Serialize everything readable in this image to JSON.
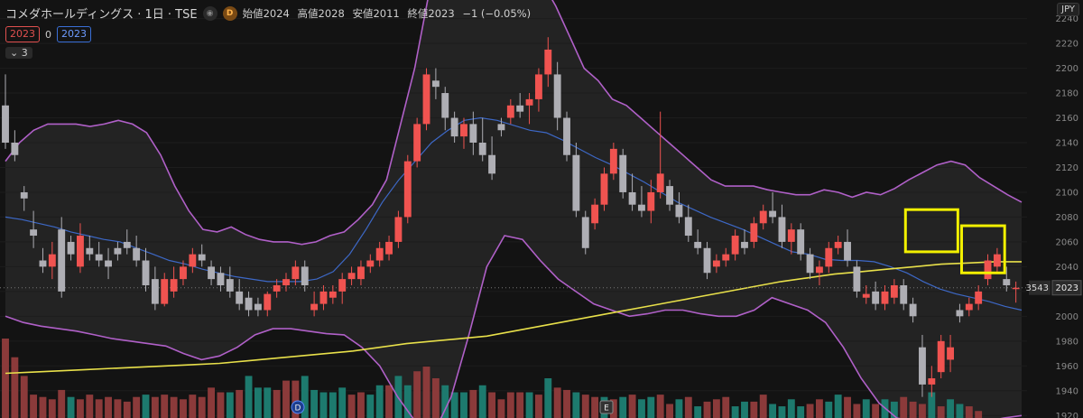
{
  "header": {
    "symbol": "コメダホールディングス · 1日 · TSE",
    "d_badge": "D",
    "open_label": "始値",
    "open": "2024",
    "high_label": "高値",
    "high": "2028",
    "low_label": "安値",
    "low": "2011",
    "close_label": "終値",
    "close": "2023",
    "change": "−1 (−0.05%)",
    "price_red": "2023",
    "spread": "0",
    "price_blue": "2023",
    "indicator_toggle": "3",
    "currency": "JPY"
  },
  "colors": {
    "background": "#131313",
    "up": "#f05350",
    "down": "#aeaeb4",
    "bb_upper_lower": "#b060c8",
    "bb_basis": "#3d68c6",
    "ma_long": "#e8e04a",
    "highlight_box": "#f2f000",
    "vol_up": "#8b3a3a",
    "vol_down": "#1d7a6e"
  },
  "chart_data": {
    "type": "candlestick",
    "ylim": [
      1918,
      2255
    ],
    "yticks": [
      1920,
      1940,
      1960,
      1980,
      2000,
      2020,
      2040,
      2060,
      2080,
      2100,
      2120,
      2140,
      2160,
      2180,
      2200,
      2220,
      2240
    ],
    "y_axis_labels": [
      "1920",
      "1940",
      "1960",
      "1980",
      "2000",
      "2020",
      "2040",
      "2060",
      "2080",
      "2100",
      "2120",
      "2140",
      "2160",
      "2180",
      "2200",
      "2220",
      "2240"
    ],
    "last_price_label": "2023",
    "secondary_label": "3543",
    "last_price": 2023,
    "candles": [
      [
        2170,
        2195,
        2135,
        2140
      ],
      [
        2140,
        2150,
        2125,
        2130
      ],
      [
        2100,
        2105,
        2085,
        2095
      ],
      [
        2070,
        2085,
        2055,
        2065
      ],
      [
        2045,
        2055,
        2035,
        2040
      ],
      [
        2040,
        2060,
        2030,
        2050
      ],
      [
        2070,
        2080,
        2015,
        2020
      ],
      [
        2060,
        2065,
        2045,
        2050
      ],
      [
        2040,
        2075,
        2035,
        2065
      ],
      [
        2055,
        2065,
        2045,
        2050
      ],
      [
        2050,
        2060,
        2040,
        2045
      ],
      [
        2045,
        2055,
        2030,
        2040
      ],
      [
        2055,
        2060,
        2045,
        2050
      ],
      [
        2060,
        2070,
        2050,
        2055
      ],
      [
        2055,
        2065,
        2040,
        2045
      ],
      [
        2045,
        2055,
        2020,
        2025
      ],
      [
        2030,
        2040,
        2005,
        2010
      ],
      [
        2010,
        2035,
        2008,
        2030
      ],
      [
        2020,
        2040,
        2015,
        2030
      ],
      [
        2030,
        2045,
        2025,
        2040
      ],
      [
        2040,
        2055,
        2035,
        2050
      ],
      [
        2050,
        2058,
        2040,
        2045
      ],
      [
        2040,
        2045,
        2025,
        2030
      ],
      [
        2035,
        2040,
        2020,
        2025
      ],
      [
        2030,
        2040,
        2015,
        2020
      ],
      [
        2020,
        2030,
        2005,
        2010
      ],
      [
        2015,
        2020,
        2000,
        2005
      ],
      [
        2010,
        2015,
        2000,
        2005
      ],
      [
        2005,
        2020,
        2000,
        2018
      ],
      [
        2020,
        2030,
        2015,
        2025
      ],
      [
        2025,
        2035,
        2020,
        2030
      ],
      [
        2030,
        2045,
        2025,
        2040
      ],
      [
        2040,
        2045,
        2020,
        2025
      ],
      [
        2005,
        2020,
        2000,
        2010
      ],
      [
        2010,
        2025,
        2005,
        2020
      ],
      [
        2015,
        2025,
        2010,
        2020
      ],
      [
        2020,
        2035,
        2010,
        2030
      ],
      [
        2030,
        2040,
        2025,
        2035
      ],
      [
        2030,
        2045,
        2025,
        2040
      ],
      [
        2040,
        2050,
        2035,
        2045
      ],
      [
        2045,
        2060,
        2040,
        2055
      ],
      [
        2050,
        2065,
        2045,
        2060
      ],
      [
        2060,
        2085,
        2055,
        2080
      ],
      [
        2080,
        2130,
        2075,
        2125
      ],
      [
        2125,
        2160,
        2120,
        2155
      ],
      [
        2155,
        2200,
        2150,
        2195
      ],
      [
        2190,
        2200,
        2175,
        2185
      ],
      [
        2180,
        2185,
        2150,
        2160
      ],
      [
        2160,
        2165,
        2140,
        2145
      ],
      [
        2145,
        2160,
        2135,
        2155
      ],
      [
        2155,
        2165,
        2130,
        2140
      ],
      [
        2140,
        2160,
        2125,
        2130
      ],
      [
        2130,
        2145,
        2110,
        2115
      ],
      [
        2155,
        2160,
        2145,
        2150
      ],
      [
        2160,
        2175,
        2155,
        2170
      ],
      [
        2170,
        2180,
        2160,
        2165
      ],
      [
        2170,
        2180,
        2155,
        2175
      ],
      [
        2175,
        2200,
        2165,
        2195
      ],
      [
        2195,
        2225,
        2185,
        2215
      ],
      [
        2195,
        2205,
        2150,
        2160
      ],
      [
        2160,
        2165,
        2125,
        2130
      ],
      [
        2130,
        2140,
        2080,
        2085
      ],
      [
        2080,
        2085,
        2050,
        2055
      ],
      [
        2075,
        2095,
        2070,
        2090
      ],
      [
        2090,
        2120,
        2085,
        2115
      ],
      [
        2115,
        2140,
        2110,
        2135
      ],
      [
        2130,
        2135,
        2095,
        2100
      ],
      [
        2100,
        2115,
        2085,
        2090
      ],
      [
        2090,
        2105,
        2080,
        2085
      ],
      [
        2085,
        2110,
        2075,
        2100
      ],
      [
        2100,
        2165,
        2095,
        2115
      ],
      [
        2105,
        2110,
        2085,
        2090
      ],
      [
        2090,
        2100,
        2075,
        2080
      ],
      [
        2080,
        2090,
        2060,
        2065
      ],
      [
        2060,
        2070,
        2050,
        2055
      ],
      [
        2055,
        2060,
        2030,
        2035
      ],
      [
        2040,
        2050,
        2035,
        2045
      ],
      [
        2045,
        2055,
        2040,
        2050
      ],
      [
        2050,
        2070,
        2045,
        2065
      ],
      [
        2060,
        2070,
        2050,
        2055
      ],
      [
        2060,
        2080,
        2055,
        2075
      ],
      [
        2075,
        2090,
        2070,
        2085
      ],
      [
        2085,
        2100,
        2075,
        2080
      ],
      [
        2080,
        2090,
        2055,
        2060
      ],
      [
        2060,
        2075,
        2050,
        2070
      ],
      [
        2070,
        2075,
        2045,
        2050
      ],
      [
        2050,
        2055,
        2030,
        2035
      ],
      [
        2035,
        2045,
        2025,
        2040
      ],
      [
        2040,
        2060,
        2035,
        2055
      ],
      [
        2055,
        2065,
        2050,
        2060
      ],
      [
        2060,
        2070,
        2040,
        2045
      ],
      [
        2040,
        2045,
        2015,
        2020
      ],
      [
        2015,
        2025,
        2010,
        2018
      ],
      [
        2020,
        2028,
        2005,
        2010
      ],
      [
        2010,
        2025,
        2005,
        2020
      ],
      [
        2015,
        2030,
        2010,
        2025
      ],
      [
        2025,
        2030,
        2005,
        2010
      ],
      [
        2010,
        2015,
        1995,
        2000
      ],
      [
        1975,
        1985,
        1935,
        1945
      ],
      [
        1945,
        1960,
        1935,
        1950
      ],
      [
        1955,
        1985,
        1950,
        1980
      ],
      [
        1965,
        1985,
        1955,
        1975
      ],
      [
        2005,
        2010,
        1995,
        2000
      ],
      [
        2005,
        2015,
        2000,
        2010
      ],
      [
        2010,
        2025,
        2005,
        2020
      ],
      [
        2030,
        2050,
        2025,
        2045
      ],
      [
        2040,
        2055,
        2035,
        2050
      ],
      [
        2030,
        2040,
        2020,
        2025
      ],
      [
        2023,
        2028,
        2011,
        2023
      ]
    ],
    "bb_upper": [
      2125,
      2140,
      2150,
      2155,
      2155,
      2155,
      2153,
      2155,
      2158,
      2155,
      2148,
      2130,
      2105,
      2085,
      2070,
      2068,
      2072,
      2066,
      2062,
      2060,
      2060,
      2058,
      2060,
      2065,
      2068,
      2078,
      2090,
      2110,
      2155,
      2200,
      2260,
      2290,
      2290,
      2290,
      2290,
      2290,
      2290,
      2280,
      2270,
      2250,
      2225,
      2200,
      2190,
      2175,
      2170,
      2160,
      2150,
      2140,
      2130,
      2120,
      2110,
      2105,
      2105,
      2105,
      2102,
      2100,
      2098,
      2098,
      2102,
      2100,
      2096,
      2100,
      2098,
      2103,
      2110,
      2116,
      2122,
      2125,
      2122,
      2112,
      2105,
      2098,
      2092
    ],
    "bb_basis": [
      2080,
      2078,
      2075,
      2072,
      2068,
      2065,
      2062,
      2060,
      2055,
      2050,
      2045,
      2042,
      2038,
      2035,
      2032,
      2030,
      2028,
      2028,
      2028,
      2030,
      2036,
      2050,
      2070,
      2092,
      2110,
      2125,
      2140,
      2150,
      2158,
      2160,
      2158,
      2154,
      2150,
      2148,
      2142,
      2135,
      2128,
      2122,
      2115,
      2108,
      2100,
      2092,
      2086,
      2080,
      2075,
      2070,
      2064,
      2058,
      2052,
      2050,
      2046,
      2045,
      2045,
      2044,
      2040,
      2035,
      2028,
      2022,
      2018,
      2015,
      2012,
      2008,
      2005
    ],
    "bb_lower": [
      2000,
      1995,
      1992,
      1990,
      1988,
      1985,
      1982,
      1980,
      1978,
      1976,
      1970,
      1965,
      1968,
      1975,
      1985,
      1990,
      1990,
      1988,
      1986,
      1985,
      1975,
      1960,
      1935,
      1915,
      1905,
      1935,
      1985,
      2040,
      2065,
      2062,
      2045,
      2030,
      2020,
      2010,
      2005,
      2000,
      2002,
      2005,
      2005,
      2002,
      2000,
      2000,
      2005,
      2015,
      2010,
      2005,
      1995,
      1975,
      1950,
      1930,
      1918,
      1915,
      1913,
      1912,
      1912,
      1915,
      1918,
      1920
    ],
    "ma_long": [
      1954,
      1955,
      1956,
      1957,
      1958,
      1959,
      1960,
      1961,
      1962,
      1964,
      1966,
      1968,
      1970,
      1972,
      1975,
      1978,
      1980,
      1982,
      1984,
      1988,
      1992,
      1996,
      2000,
      2004,
      2008,
      2012,
      2016,
      2020,
      2024,
      2028,
      2031,
      2034,
      2036,
      2038,
      2040,
      2042,
      2043,
      2044,
      2044
    ],
    "volume": [
      34,
      26,
      18,
      10,
      9,
      8,
      12,
      9,
      8,
      10,
      8,
      9,
      8,
      7,
      9,
      10,
      9,
      10,
      9,
      8,
      10,
      9,
      13,
      11,
      11,
      12,
      18,
      13,
      13,
      12,
      16,
      16,
      18,
      12,
      11,
      11,
      13,
      10,
      11,
      10,
      14,
      14,
      18,
      14,
      20,
      22,
      17,
      14,
      11,
      11,
      12,
      14,
      11,
      8,
      11,
      11,
      11,
      10,
      17,
      13,
      12,
      11,
      10,
      9,
      9,
      8,
      9,
      10,
      8,
      9,
      10,
      6,
      8,
      9,
      5,
      7,
      8,
      9,
      5,
      7,
      7,
      10,
      6,
      5,
      8,
      5,
      6,
      8,
      7,
      10,
      9,
      6,
      8,
      6,
      8,
      7,
      9,
      7,
      6,
      11,
      5,
      8,
      6,
      5,
      3
    ],
    "volume_up": [
      true,
      true,
      true,
      true,
      true,
      true,
      true,
      false,
      true,
      true,
      true,
      true,
      true,
      true,
      true,
      false,
      true,
      true,
      true,
      true,
      true,
      true,
      true,
      true,
      false,
      true,
      false,
      false,
      false,
      true,
      true,
      true,
      false,
      false,
      false,
      false,
      false,
      true,
      true,
      false,
      false,
      true,
      false,
      false,
      true,
      true,
      true,
      false,
      false,
      false,
      true,
      false,
      true,
      true,
      true,
      true,
      false,
      true,
      false,
      true,
      true,
      false,
      true,
      true,
      false,
      true,
      false,
      true,
      false,
      false,
      true,
      true,
      false,
      true,
      false,
      true,
      true,
      true,
      false,
      false,
      true,
      true,
      false,
      false,
      false,
      false,
      true,
      true,
      false,
      false,
      true,
      true,
      false,
      true,
      false,
      false,
      true,
      true,
      true,
      false,
      true,
      false,
      false,
      true,
      true
    ],
    "event_markers": [
      {
        "label": "D",
        "index": 58
      },
      {
        "label": "E",
        "index": 122
      }
    ],
    "highlight_boxes": [
      [
        97,
        101,
        2086,
        2052
      ],
      [
        103,
        106,
        2073,
        2035
      ],
      [
        123,
        126,
        2057,
        2014
      ]
    ]
  }
}
